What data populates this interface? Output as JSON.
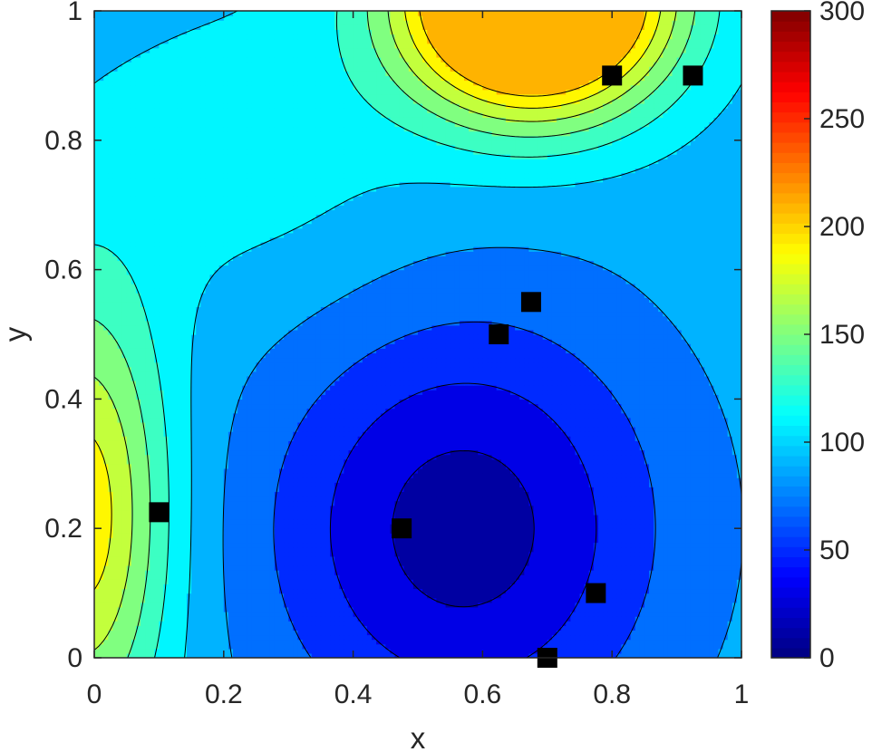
{
  "chart_data": {
    "type": "heatmap",
    "subtype": "filled-contour",
    "title": "",
    "xlabel": "x",
    "ylabel": "y",
    "xlim": [
      0,
      1
    ],
    "ylim": [
      0,
      1
    ],
    "x_ticks": [
      "0",
      "0.2",
      "0.4",
      "0.6",
      "0.8",
      "1"
    ],
    "y_ticks": [
      "0",
      "0.2",
      "0.4",
      "0.6",
      "0.8",
      "1"
    ],
    "colorbar": {
      "colormap": "jet",
      "range": [
        0,
        300
      ],
      "ticks": [
        "0",
        "50",
        "100",
        "150",
        "200",
        "250",
        "300"
      ]
    },
    "contour_levels": [
      0,
      20,
      40,
      60,
      80,
      100,
      120,
      140,
      160,
      180,
      200
    ],
    "points": [
      {
        "x": 0.1,
        "y": 0.225
      },
      {
        "x": 0.475,
        "y": 0.2
      },
      {
        "x": 0.625,
        "y": 0.5
      },
      {
        "x": 0.675,
        "y": 0.55
      },
      {
        "x": 0.7,
        "y": 0.0
      },
      {
        "x": 0.775,
        "y": 0.1
      },
      {
        "x": 0.8,
        "y": 0.9
      },
      {
        "x": 0.925,
        "y": 0.9
      }
    ],
    "marker_color": "#000000",
    "grid": false
  }
}
